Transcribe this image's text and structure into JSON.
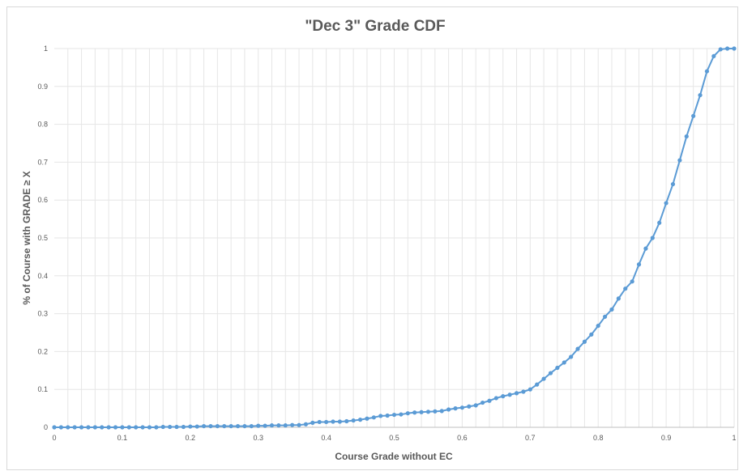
{
  "chart_data": {
    "type": "line",
    "title": "\"Dec 3\" Grade CDF",
    "xlabel": "Course Grade without EC",
    "ylabel": "% of Course with GRADE ≥ X",
    "xlim": [
      0,
      1
    ],
    "ylim": [
      0,
      1
    ],
    "x_ticks": [
      "0",
      "0.1",
      "0.2",
      "0.3",
      "0.4",
      "0.5",
      "0.6",
      "0.7",
      "0.8",
      "0.9",
      "1"
    ],
    "y_ticks": [
      "0",
      "0.1",
      "0.2",
      "0.3",
      "0.4",
      "0.5",
      "0.6",
      "0.7",
      "0.8",
      "0.9",
      "1"
    ],
    "grid": true,
    "legend": "none",
    "colors": {
      "series": "#5b9bd5",
      "grid": "#e6e6e6",
      "axis": "#bfbfbf",
      "text": "#595959"
    },
    "series": [
      {
        "x": [
          0,
          0.01,
          0.02,
          0.03,
          0.04,
          0.05,
          0.06,
          0.07,
          0.08,
          0.09,
          0.1,
          0.11,
          0.12,
          0.13,
          0.14,
          0.15,
          0.16,
          0.17,
          0.18,
          0.19,
          0.2,
          0.21,
          0.22,
          0.23,
          0.24,
          0.25,
          0.26,
          0.27,
          0.28,
          0.29,
          0.3,
          0.31,
          0.32,
          0.33,
          0.34,
          0.35,
          0.36,
          0.37,
          0.38,
          0.39,
          0.4,
          0.41,
          0.42,
          0.43,
          0.44,
          0.45,
          0.46,
          0.47,
          0.48,
          0.49,
          0.5,
          0.51,
          0.52,
          0.53,
          0.54,
          0.55,
          0.56,
          0.57,
          0.58,
          0.59,
          0.6,
          0.61,
          0.62,
          0.63,
          0.64,
          0.65,
          0.66,
          0.67,
          0.68,
          0.69,
          0.7,
          0.71,
          0.72,
          0.73,
          0.74,
          0.75,
          0.76,
          0.77,
          0.78,
          0.79,
          0.8,
          0.81,
          0.82,
          0.83,
          0.84,
          0.85,
          0.86,
          0.87,
          0.88,
          0.89,
          0.9,
          0.91,
          0.92,
          0.93,
          0.94,
          0.95,
          0.96,
          0.97,
          0.98,
          0.99,
          1.0
        ],
        "values": [
          0,
          0,
          0,
          0,
          0,
          0,
          0,
          0,
          0,
          0,
          0,
          0,
          0,
          0,
          0,
          0,
          0.001,
          0.001,
          0.001,
          0.001,
          0.002,
          0.002,
          0.003,
          0.003,
          0.003,
          0.003,
          0.003,
          0.003,
          0.003,
          0.003,
          0.004,
          0.004,
          0.005,
          0.005,
          0.005,
          0.006,
          0.006,
          0.008,
          0.012,
          0.014,
          0.014,
          0.015,
          0.015,
          0.016,
          0.018,
          0.02,
          0.023,
          0.026,
          0.03,
          0.031,
          0.033,
          0.034,
          0.037,
          0.039,
          0.04,
          0.041,
          0.042,
          0.043,
          0.047,
          0.05,
          0.052,
          0.055,
          0.058,
          0.065,
          0.07,
          0.077,
          0.082,
          0.086,
          0.09,
          0.094,
          0.1,
          0.113,
          0.128,
          0.143,
          0.157,
          0.171,
          0.186,
          0.207,
          0.226,
          0.245,
          0.268,
          0.292,
          0.311,
          0.34,
          0.366,
          0.385,
          0.43,
          0.472,
          0.5,
          0.54,
          0.592,
          0.642,
          0.705,
          0.768,
          0.822,
          0.877,
          0.94,
          0.98,
          0.998,
          1.0,
          1.0
        ]
      }
    ]
  }
}
